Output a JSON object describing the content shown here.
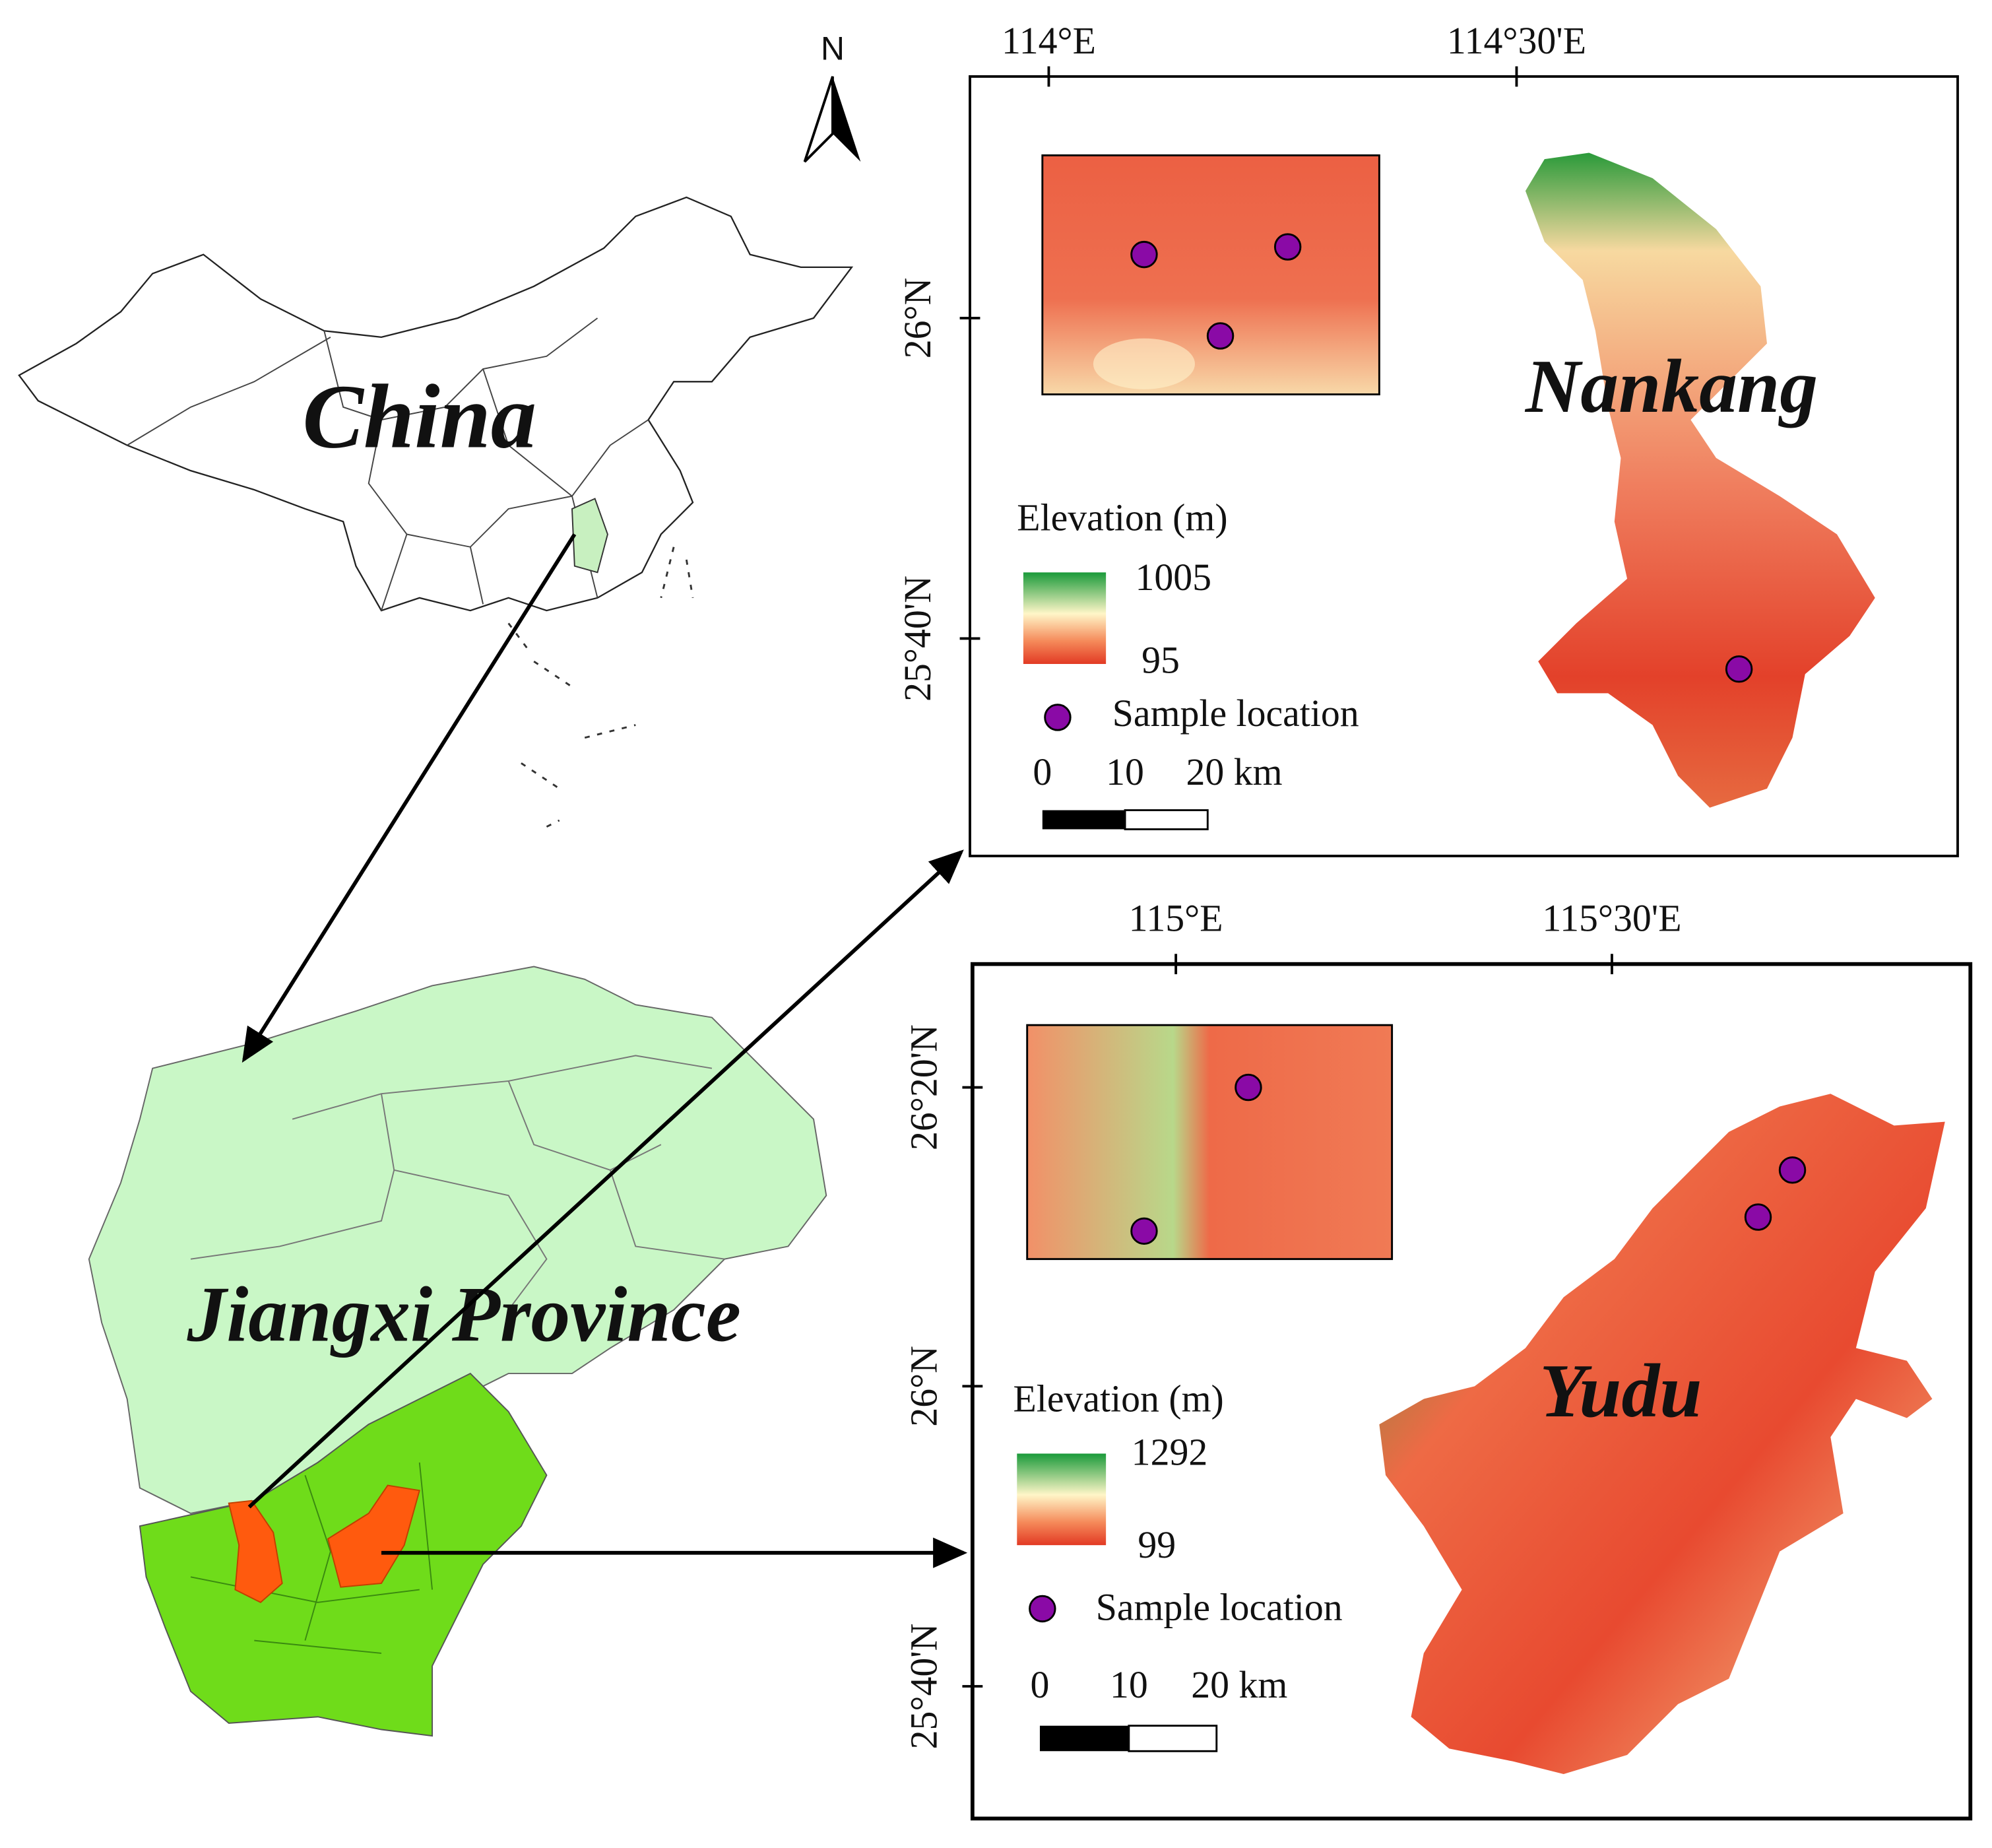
{
  "north_arrow": "N",
  "china": {
    "label": "China"
  },
  "jiangxi": {
    "label": "Jiangxi Province"
  },
  "panels": [
    {
      "name": "Nankang",
      "x_labels": [
        "114°E",
        "114°30'E"
      ],
      "y_labels": [
        "26°N",
        "25°40'N"
      ],
      "legend": {
        "title": "Elevation (m)",
        "max": "1005",
        "min": "95",
        "sample": "Sample location",
        "scale": [
          "0",
          "10",
          "20 km"
        ]
      }
    },
    {
      "name": "Yudu",
      "x_labels": [
        "115°E",
        "115°30'E"
      ],
      "y_labels": [
        "26°20'N",
        "26°N",
        "25°40'N"
      ],
      "legend": {
        "title": "Elevation (m)",
        "max": "1292",
        "min": "99",
        "sample": "Sample location",
        "scale": [
          "0",
          "10",
          "20 km"
        ]
      }
    }
  ]
}
